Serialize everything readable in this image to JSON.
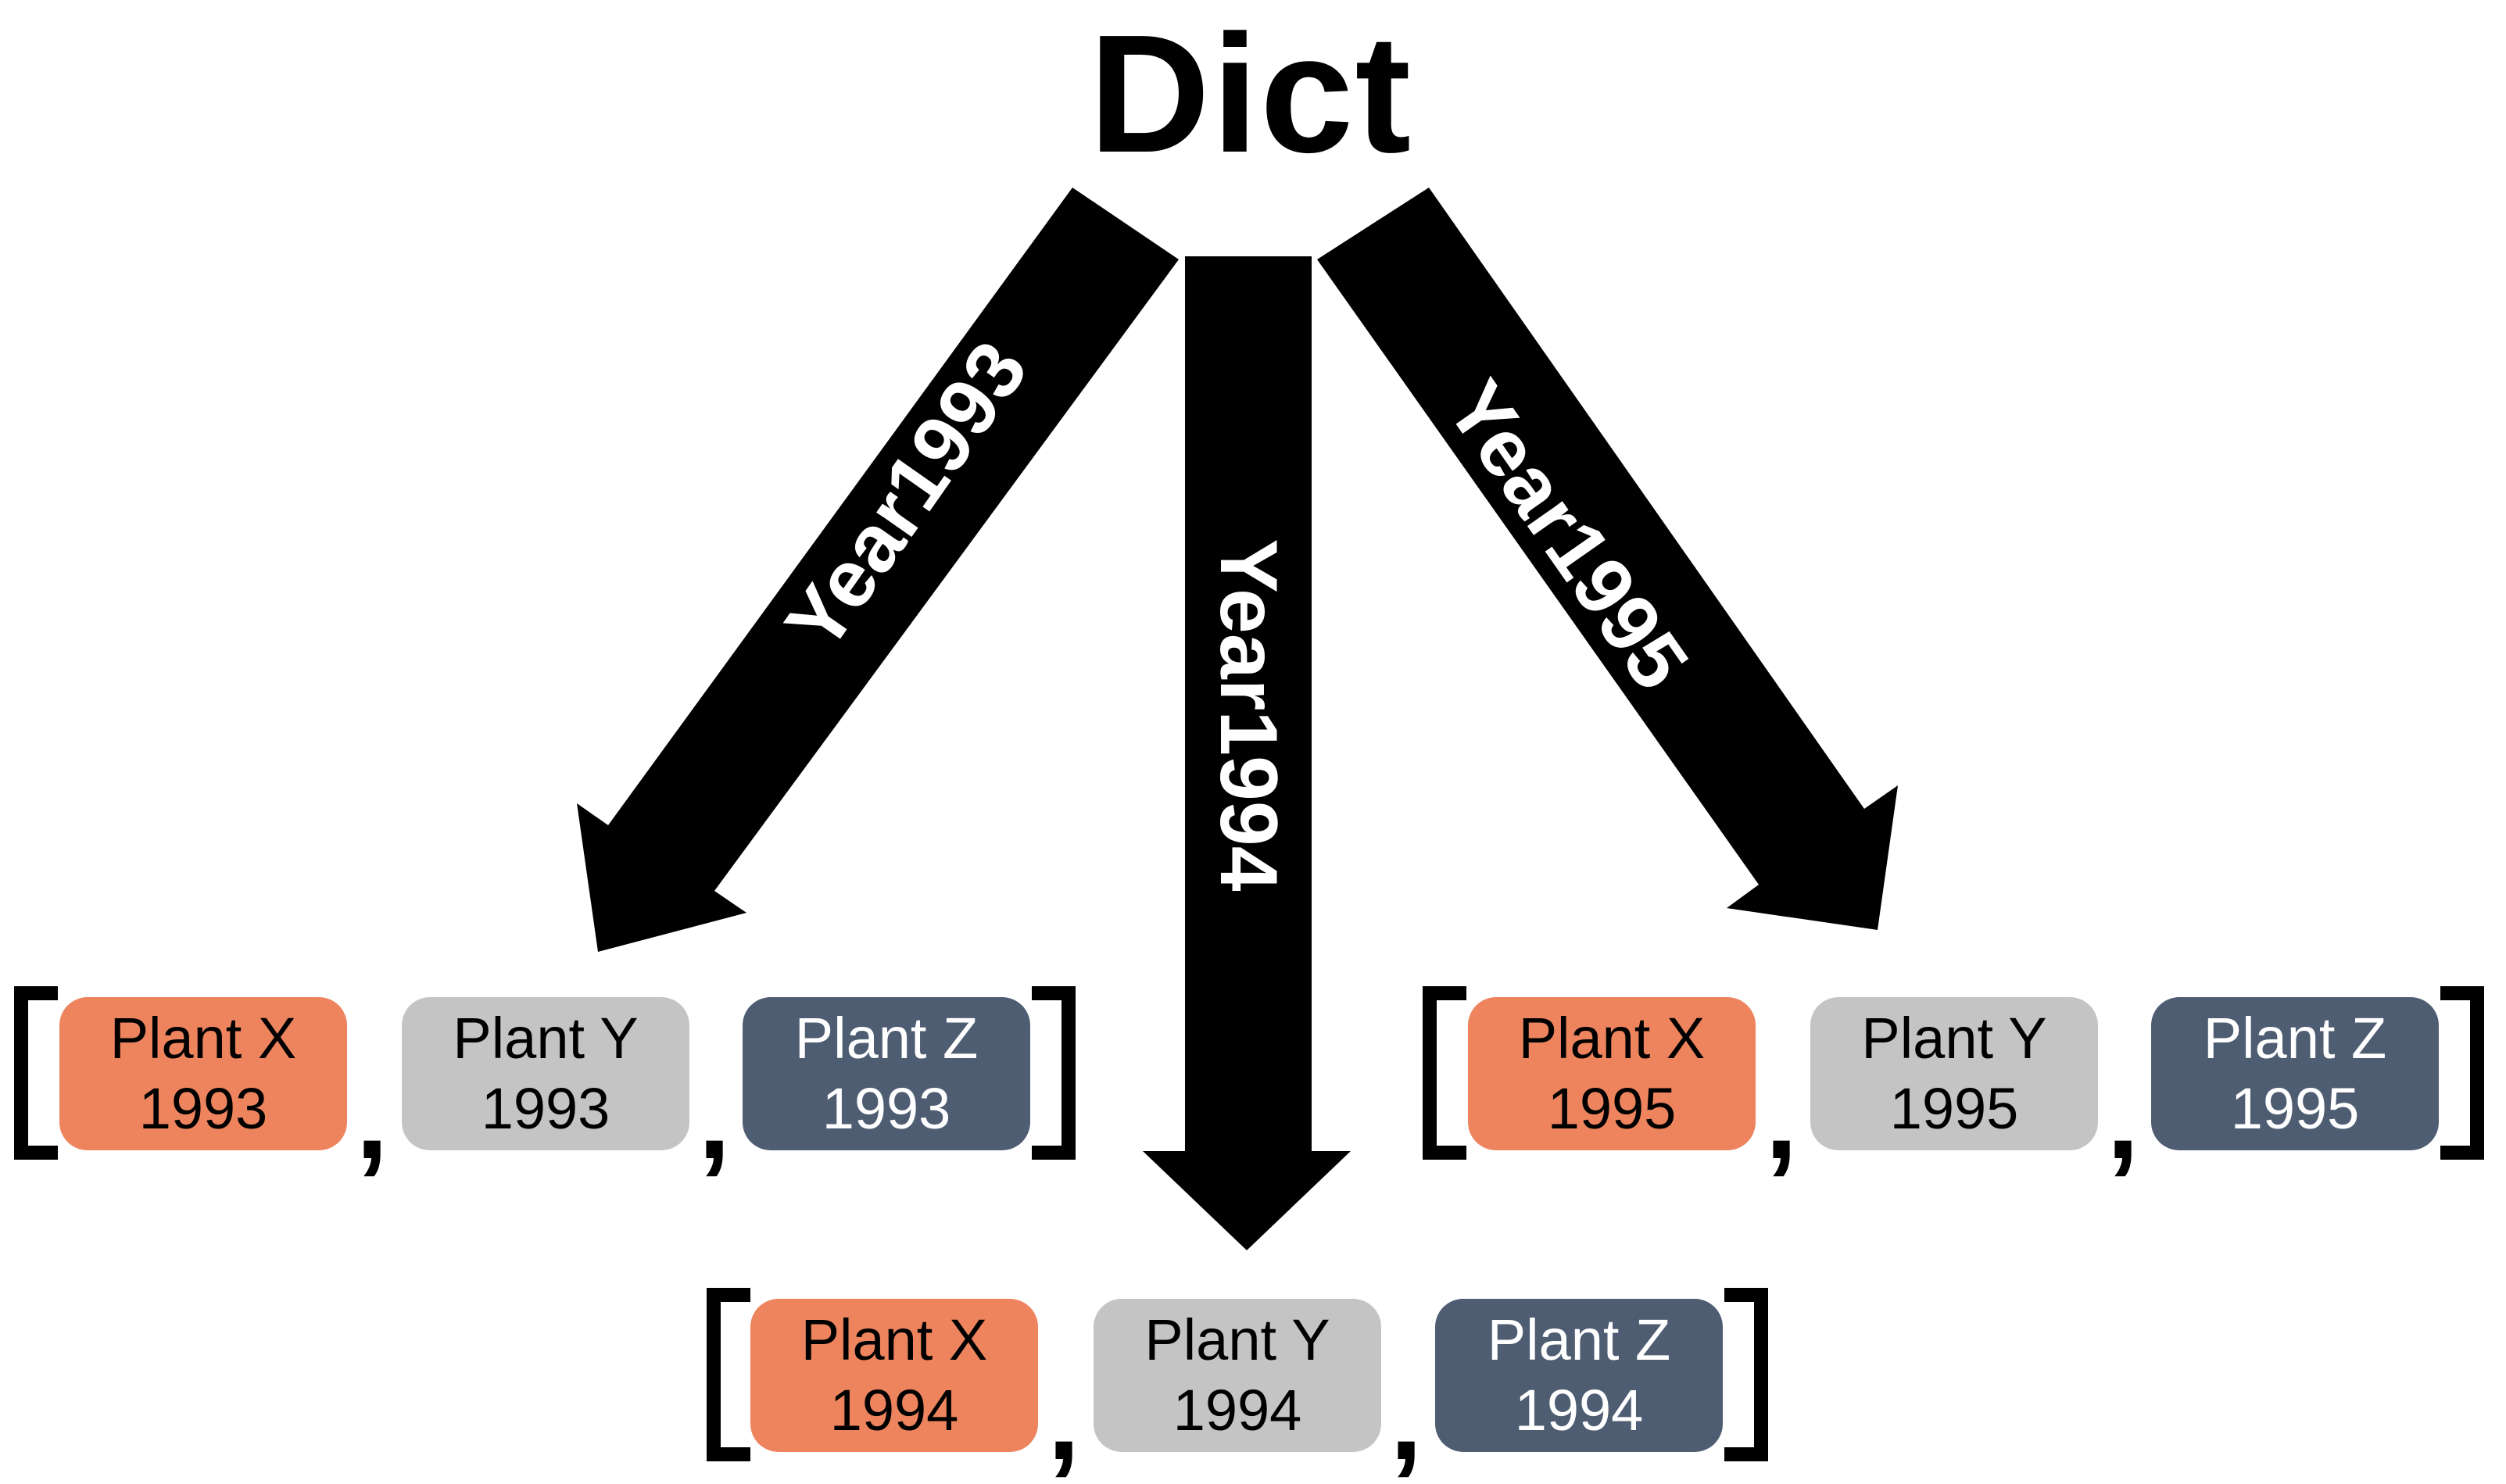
{
  "title": "Dict",
  "colors": {
    "arrow": "#000000",
    "plant_x": "#ED845E",
    "plant_y": "#C4C4C4",
    "plant_z": "#4F5D73",
    "text_dark": "#000000",
    "text_light": "#FFFFFF"
  },
  "arrows": [
    {
      "label": "Year1993"
    },
    {
      "label": "Year1994"
    },
    {
      "label": "Year1995"
    }
  ],
  "groups": [
    {
      "year": "1993",
      "items": [
        {
          "name": "Plant X",
          "year": "1993",
          "color": "plant_x"
        },
        {
          "name": "Plant Y",
          "year": "1993",
          "color": "plant_y"
        },
        {
          "name": "Plant Z",
          "year": "1993",
          "color": "plant_z"
        }
      ]
    },
    {
      "year": "1994",
      "items": [
        {
          "name": "Plant X",
          "year": "1994",
          "color": "plant_x"
        },
        {
          "name": "Plant Y",
          "year": "1994",
          "color": "plant_y"
        },
        {
          "name": "Plant Z",
          "year": "1994",
          "color": "plant_z"
        }
      ]
    },
    {
      "year": "1995",
      "items": [
        {
          "name": "Plant X",
          "year": "1995",
          "color": "plant_x"
        },
        {
          "name": "Plant Y",
          "year": "1995",
          "color": "plant_y"
        },
        {
          "name": "Plant Z",
          "year": "1995",
          "color": "plant_z"
        }
      ]
    }
  ],
  "separator": ","
}
